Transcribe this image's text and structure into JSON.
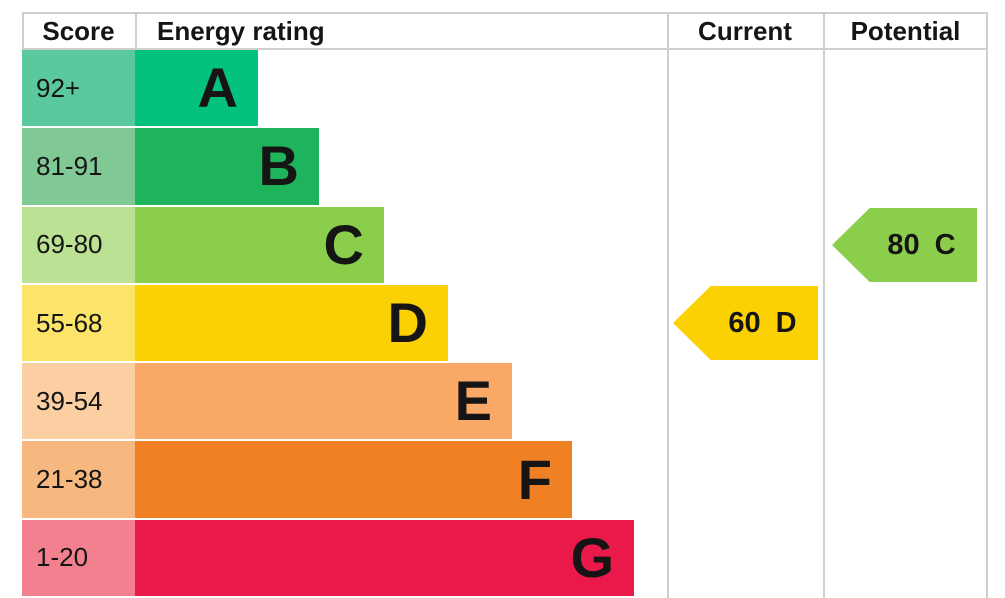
{
  "header": {
    "score": "Score",
    "energy_rating": "Energy rating",
    "current": "Current",
    "potential": "Potential"
  },
  "bands": [
    {
      "letter": "A",
      "score": "92+",
      "bar_color": "#04c17e",
      "score_color": "#5ac99e"
    },
    {
      "letter": "B",
      "score": "81-91",
      "bar_color": "#1eb45b",
      "score_color": "#80c994"
    },
    {
      "letter": "C",
      "score": "69-80",
      "bar_color": "#8bce4c",
      "score_color": "#bbe294"
    },
    {
      "letter": "D",
      "score": "55-68",
      "bar_color": "#fbd103",
      "score_color": "#fce469"
    },
    {
      "letter": "E",
      "score": "39-54",
      "bar_color": "#f9a965",
      "score_color": "#fbcfa2"
    },
    {
      "letter": "F",
      "score": "21-38",
      "bar_color": "#ef8124",
      "score_color": "#f6b87e"
    },
    {
      "letter": "G",
      "score": "1-20",
      "bar_color": "#e9194a",
      "score_color": "#f3808f"
    }
  ],
  "current": {
    "value": "60",
    "band": "D",
    "color": "#fbd103"
  },
  "potential": {
    "value": "80",
    "band": "C",
    "color": "#8bce4c"
  },
  "colors": {
    "grid_line": "#cfcfcf",
    "text": "#151515",
    "background": "#ffffff"
  },
  "chart_data": {
    "type": "bar",
    "title": "Energy rating",
    "column_headers": [
      "Score",
      "Energy rating",
      "Current",
      "Potential"
    ],
    "categories": [
      "A",
      "B",
      "C",
      "D",
      "E",
      "F",
      "G"
    ],
    "score_ranges": [
      "92+",
      "81-91",
      "69-80",
      "55-68",
      "39-54",
      "21-38",
      "1-20"
    ],
    "bar_colors": [
      "#04c17e",
      "#1eb45b",
      "#8bce4c",
      "#fbd103",
      "#f9a965",
      "#ef8124",
      "#e9194a"
    ],
    "current": {
      "value": 60,
      "band": "D"
    },
    "potential": {
      "value": 80,
      "band": "C"
    },
    "bar_direction": "horizontal, stepped widths increasing from A to G",
    "legend_position": "none",
    "grid": "vertical column dividers only"
  }
}
